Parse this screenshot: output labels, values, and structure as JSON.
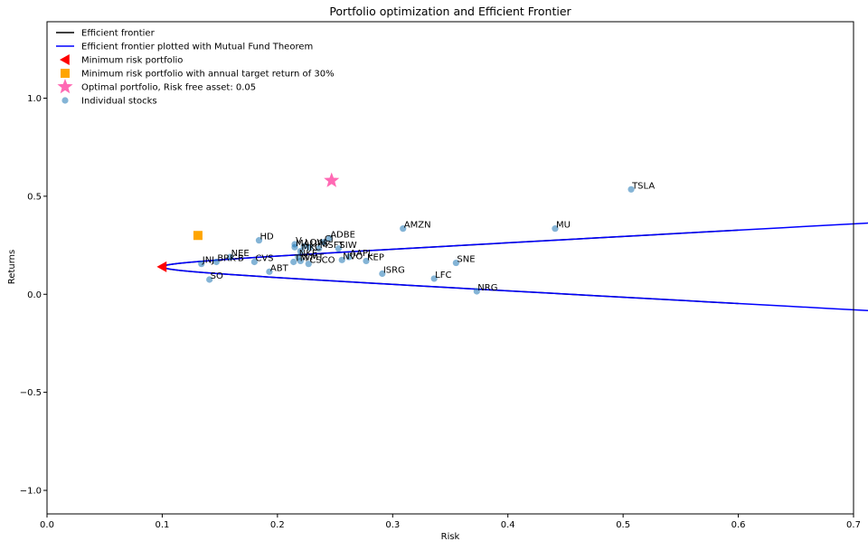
{
  "chart_data": {
    "type": "scatter",
    "title": "Portfolio optimization and Efficient Frontier",
    "xlabel": "Risk",
    "ylabel": "Returns",
    "xlim": [
      0.0,
      0.7
    ],
    "ylim": [
      -1.12,
      1.39
    ],
    "xticks": [
      0.0,
      0.1,
      0.2,
      0.3,
      0.4,
      0.5,
      0.6,
      0.7
    ],
    "xtick_labels": [
      "0.0",
      "0.1",
      "0.2",
      "0.3",
      "0.4",
      "0.5",
      "0.6",
      "0.7"
    ],
    "yticks": [
      -1.0,
      -0.5,
      0.0,
      0.5,
      1.0
    ],
    "ytick_labels": [
      "−1.0",
      "−0.5",
      "0.0",
      "0.5",
      "1.0"
    ],
    "grid": false,
    "legend_position": "top-left",
    "frontier": {
      "min_variance_return": 0.14,
      "min_risk": 0.1,
      "curvature_b": 10.0,
      "risk_max": 0.6
    },
    "frontier_mft_return_range": [
      -0.16,
      0.78
    ],
    "series": [
      {
        "name": "Efficient frontier",
        "kind": "line",
        "color": "#000000"
      },
      {
        "name": "Efficient frontier plotted with Mutual Fund Theorem",
        "kind": "line",
        "color": "#0000ff"
      },
      {
        "name": "Minimum risk portfolio",
        "kind": "marker",
        "marker": "triangle-left",
        "color": "#ff0000",
        "points": [
          {
            "x": 0.1,
            "y": 0.14
          }
        ]
      },
      {
        "name": "Minimum risk portfolio with annual target return of 30%",
        "kind": "marker",
        "marker": "square",
        "color": "#ffa500",
        "points": [
          {
            "x": 0.131,
            "y": 0.3
          }
        ]
      },
      {
        "name": "Optimal portfolio, Risk free asset: 0.05",
        "kind": "marker",
        "marker": "star",
        "color": "#ff69b4",
        "points": [
          {
            "x": 0.247,
            "y": 0.58
          }
        ]
      },
      {
        "name": "Individual stocks",
        "kind": "scatter",
        "color": "#1f77b4",
        "points": [
          {
            "label": "TSLA",
            "x": 0.507,
            "y": 0.535
          },
          {
            "label": "MU",
            "x": 0.441,
            "y": 0.335
          },
          {
            "label": "AMZN",
            "x": 0.309,
            "y": 0.335
          },
          {
            "label": "ADBE",
            "x": 0.245,
            "y": 0.285
          },
          {
            "label": "HD",
            "x": 0.184,
            "y": 0.275
          },
          {
            "label": "V",
            "x": 0.215,
            "y": 0.255
          },
          {
            "label": "LOW",
            "x": 0.223,
            "y": 0.245
          },
          {
            "label": "CI",
            "x": 0.24,
            "y": 0.265
          },
          {
            "label": "MA",
            "x": 0.215,
            "y": 0.24
          },
          {
            "label": "UPS",
            "x": 0.228,
            "y": 0.238
          },
          {
            "label": "MSFT",
            "x": 0.236,
            "y": 0.233
          },
          {
            "label": "SIW",
            "x": 0.253,
            "y": 0.233
          },
          {
            "label": "MKC",
            "x": 0.22,
            "y": 0.22
          },
          {
            "label": "NKE",
            "x": 0.218,
            "y": 0.19
          },
          {
            "label": "WMT",
            "x": 0.22,
            "y": 0.17
          },
          {
            "label": "TM",
            "x": 0.214,
            "y": 0.165
          },
          {
            "label": "CSCO",
            "x": 0.227,
            "y": 0.155
          },
          {
            "label": "AAPL",
            "x": 0.262,
            "y": 0.19
          },
          {
            "label": "NVO",
            "x": 0.256,
            "y": 0.175
          },
          {
            "label": "KEP",
            "x": 0.277,
            "y": 0.17
          },
          {
            "label": "NEE",
            "x": 0.159,
            "y": 0.19
          },
          {
            "label": "CVS",
            "x": 0.18,
            "y": 0.165
          },
          {
            "label": "BRK-B",
            "x": 0.147,
            "y": 0.165
          },
          {
            "label": "JNJ",
            "x": 0.134,
            "y": 0.155
          },
          {
            "label": "ABT",
            "x": 0.193,
            "y": 0.115
          },
          {
            "label": "SO",
            "x": 0.141,
            "y": 0.075
          },
          {
            "label": "ISRG",
            "x": 0.291,
            "y": 0.105
          },
          {
            "label": "SNE",
            "x": 0.355,
            "y": 0.16
          },
          {
            "label": "LFC",
            "x": 0.336,
            "y": 0.08
          },
          {
            "label": "NRG",
            "x": 0.373,
            "y": 0.015
          }
        ]
      }
    ]
  }
}
